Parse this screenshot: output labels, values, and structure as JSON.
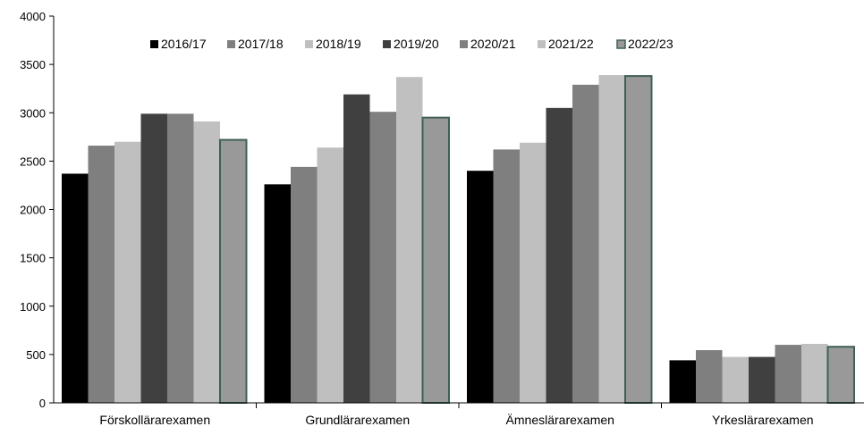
{
  "chart_data": {
    "type": "bar",
    "categories": [
      "Förskollärarexamen",
      "Grundlärarexamen",
      "Ämneslärarexamen",
      "Yrkeslärarexamen"
    ],
    "series": [
      {
        "name": "2016/17",
        "color": "#000000",
        "values": [
          2370,
          2260,
          2400,
          440
        ]
      },
      {
        "name": "2017/18",
        "color": "#7f7f7f",
        "values": [
          2660,
          2440,
          2620,
          545
        ]
      },
      {
        "name": "2018/19",
        "color": "#bfbfbf",
        "values": [
          2700,
          2640,
          2690,
          475
        ]
      },
      {
        "name": "2019/20",
        "color": "#404040",
        "values": [
          2990,
          3190,
          3050,
          475
        ]
      },
      {
        "name": "2020/21",
        "color": "#808080",
        "values": [
          2990,
          3010,
          3290,
          600
        ]
      },
      {
        "name": "2021/22",
        "color": "#c0c0c0",
        "values": [
          2910,
          3370,
          3390,
          610
        ]
      },
      {
        "name": "2022/23",
        "color": "#999999",
        "outline": "#3f5f55",
        "values": [
          2720,
          2950,
          3380,
          580
        ]
      }
    ],
    "ylim": [
      0,
      4000
    ],
    "yticks": [
      0,
      500,
      1000,
      1500,
      2000,
      2500,
      3000,
      3500,
      4000
    ],
    "grid": false,
    "legend_position": "top"
  }
}
